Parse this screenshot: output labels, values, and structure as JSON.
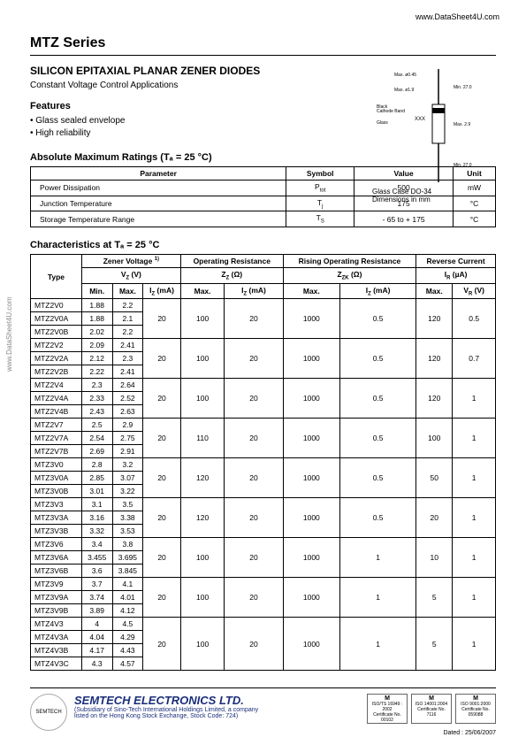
{
  "url_top": "www.DataSheet4U.com",
  "url_side": "www.DataSheet4U.com",
  "series_title": "MTZ Series",
  "subtitle": "SILICON EPITAXIAL PLANAR ZENER DIODES",
  "subtext": "Constant Voltage Control Applications",
  "features_heading": "Features",
  "features": [
    "• Glass sealed envelope",
    "• High reliability"
  ],
  "package": {
    "caption": "Glass Case DO-34\nDimensions in mm",
    "labels": [
      "Max. ø0.45",
      "Max. ø1.9",
      "Min. 27.0",
      "Black Cathode Band",
      "Glass",
      "XXX",
      "Max. 2.9",
      "Min. 27.0"
    ]
  },
  "ratings_heading": "Absolute Maximum Ratings (Tₐ = 25 °C)",
  "ratings_table": {
    "headers": [
      "Parameter",
      "Symbol",
      "Value",
      "Unit"
    ],
    "rows": [
      [
        "Power Dissipation",
        "P_tot",
        "500",
        "mW"
      ],
      [
        "Junction Temperature",
        "T_j",
        "175",
        "°C"
      ],
      [
        "Storage Temperature Range",
        "T_S",
        "- 65 to + 175",
        "°C"
      ]
    ]
  },
  "char_heading": "Characteristics at Tₐ = 25 °C",
  "char_table": {
    "group_headers": [
      {
        "label": "Type",
        "span": 1
      },
      {
        "label": "Zener Voltage ¹⁾\nV_Z (V)",
        "span": 3
      },
      {
        "label": "Operating Resistance\nZ_Z (Ω)",
        "span": 2
      },
      {
        "label": "Rising Operating Resistance\nZ_ZK (Ω)",
        "span": 2
      },
      {
        "label": "Reverse Current\nI_R (µA)",
        "span": 2
      }
    ],
    "sub_headers": [
      "Min.",
      "Max.",
      "I_Z (mA)",
      "Max.",
      "I_Z (mA)",
      "Max.",
      "I_Z (mA)",
      "Max.",
      "V_R (V)"
    ],
    "groups": [
      {
        "rows": [
          [
            "MTZ2V0",
            "1.88",
            "2.2"
          ],
          [
            "MTZ2V0A",
            "1.88",
            "2.1"
          ],
          [
            "MTZ2V0B",
            "2.02",
            "2.2"
          ]
        ],
        "tail": [
          "20",
          "100",
          "20",
          "1000",
          "0.5",
          "120",
          "0.5"
        ]
      },
      {
        "rows": [
          [
            "MTZ2V2",
            "2.09",
            "2.41"
          ],
          [
            "MTZ2V2A",
            "2.12",
            "2.3"
          ],
          [
            "MTZ2V2B",
            "2.22",
            "2.41"
          ]
        ],
        "tail": [
          "20",
          "100",
          "20",
          "1000",
          "0.5",
          "120",
          "0.7"
        ]
      },
      {
        "rows": [
          [
            "MTZ2V4",
            "2.3",
            "2.64"
          ],
          [
            "MTZ2V4A",
            "2.33",
            "2.52"
          ],
          [
            "MTZ2V4B",
            "2.43",
            "2.63"
          ]
        ],
        "tail": [
          "20",
          "100",
          "20",
          "1000",
          "0.5",
          "120",
          "1"
        ]
      },
      {
        "rows": [
          [
            "MTZ2V7",
            "2.5",
            "2.9"
          ],
          [
            "MTZ2V7A",
            "2.54",
            "2.75"
          ],
          [
            "MTZ2V7B",
            "2.69",
            "2.91"
          ]
        ],
        "tail": [
          "20",
          "110",
          "20",
          "1000",
          "0.5",
          "100",
          "1"
        ]
      },
      {
        "rows": [
          [
            "MTZ3V0",
            "2.8",
            "3.2"
          ],
          [
            "MTZ3V0A",
            "2.85",
            "3.07"
          ],
          [
            "MTZ3V0B",
            "3.01",
            "3.22"
          ]
        ],
        "tail": [
          "20",
          "120",
          "20",
          "1000",
          "0.5",
          "50",
          "1"
        ]
      },
      {
        "rows": [
          [
            "MTZ3V3",
            "3.1",
            "3.5"
          ],
          [
            "MTZ3V3A",
            "3.16",
            "3.38"
          ],
          [
            "MTZ3V3B",
            "3.32",
            "3.53"
          ]
        ],
        "tail": [
          "20",
          "120",
          "20",
          "1000",
          "0.5",
          "20",
          "1"
        ]
      },
      {
        "rows": [
          [
            "MTZ3V6",
            "3.4",
            "3.8"
          ],
          [
            "MTZ3V6A",
            "3.455",
            "3.695"
          ],
          [
            "MTZ3V6B",
            "3.6",
            "3.845"
          ]
        ],
        "tail": [
          "20",
          "100",
          "20",
          "1000",
          "1",
          "10",
          "1"
        ]
      },
      {
        "rows": [
          [
            "MTZ3V9",
            "3.7",
            "4.1"
          ],
          [
            "MTZ3V9A",
            "3.74",
            "4.01"
          ],
          [
            "MTZ3V9B",
            "3.89",
            "4.12"
          ]
        ],
        "tail": [
          "20",
          "100",
          "20",
          "1000",
          "1",
          "5",
          "1"
        ]
      },
      {
        "rows": [
          [
            "MTZ4V3",
            "4",
            "4.5"
          ],
          [
            "MTZ4V3A",
            "4.04",
            "4.29"
          ],
          [
            "MTZ4V3B",
            "4.17",
            "4.43"
          ],
          [
            "MTZ4V3C",
            "4.3",
            "4.57"
          ]
        ],
        "tail": [
          "20",
          "100",
          "20",
          "1000",
          "1",
          "5",
          "1"
        ]
      }
    ]
  },
  "footer": {
    "company": "SEMTECH ELECTRONICS LTD.",
    "sub": "(Subsidiary of Sino-Tech International Holdings Limited, a company\nlisted on the Hong Kong Stock Exchange, Stock Code: 724)",
    "certs": [
      "ISO/TS 16949 : 2002\nCertificate No. 00102",
      "ISO 14001:2004\nCertificate No. 7116",
      "ISO 9001:2000\nCertificate No. 059088"
    ],
    "date": "Dated : 25/06/2007"
  }
}
